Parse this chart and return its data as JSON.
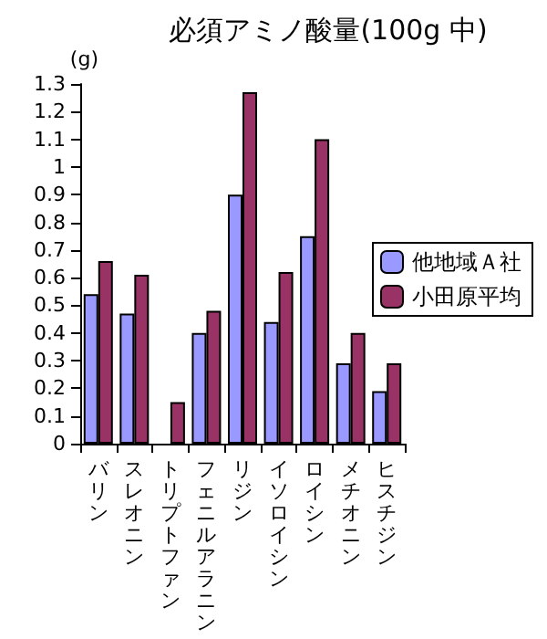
{
  "chart_data": {
    "type": "bar",
    "title": "必須アミノ酸量(100g 中)",
    "ylabel": "(g)",
    "categories": [
      "バリン",
      "スレオニン",
      "トリプトファン",
      "フェニルアラニン",
      "リジン",
      "イソロイシン",
      "ロイシン",
      "メチオニン",
      "ヒスチジン"
    ],
    "series": [
      {
        "name": "他地域Ａ社",
        "color": "#9999ff",
        "values": [
          0.54,
          0.47,
          null,
          0.4,
          0.9,
          0.44,
          0.75,
          0.29,
          0.19
        ]
      },
      {
        "name": "小田原平均",
        "color": "#993366",
        "values": [
          0.66,
          0.61,
          0.15,
          0.48,
          1.27,
          0.62,
          1.1,
          0.4,
          0.29
        ]
      }
    ],
    "ylim": [
      0,
      1.3
    ],
    "yticks": [
      0,
      0.1,
      0.2,
      0.3,
      0.4,
      0.5,
      0.6,
      0.7,
      0.8,
      0.9,
      1,
      1.1,
      1.2,
      1.3
    ],
    "grid": false,
    "legend": "right"
  }
}
